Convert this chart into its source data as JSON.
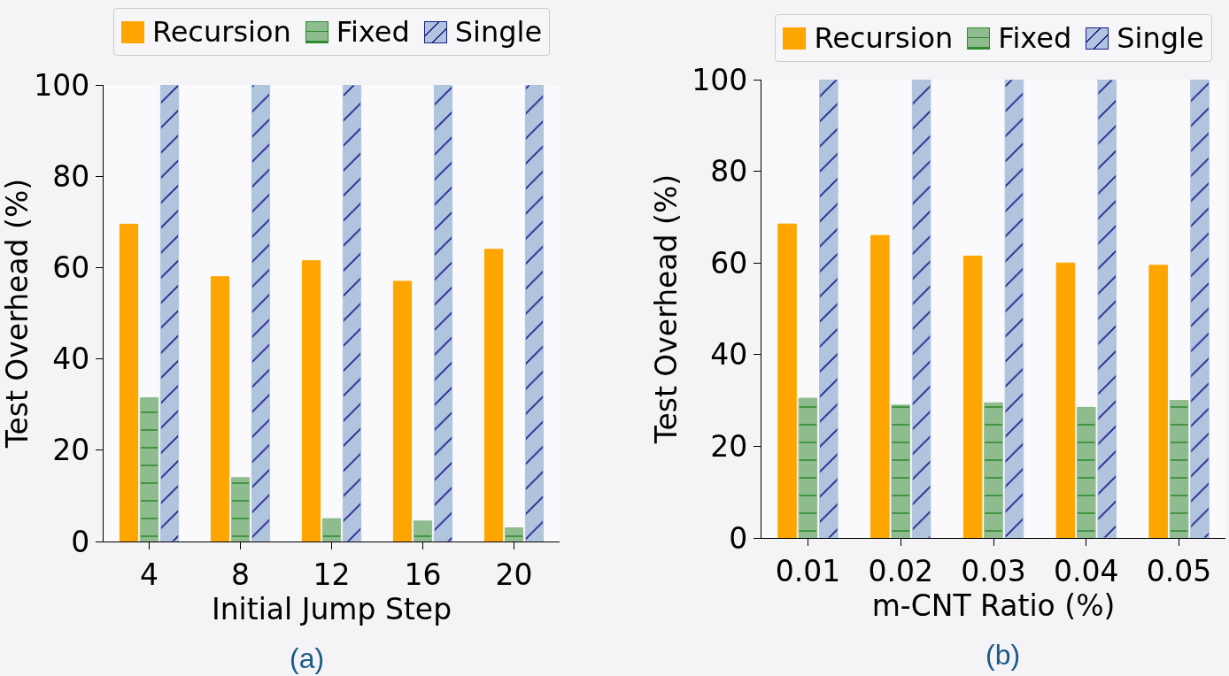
{
  "chart_data": [
    {
      "type": "bar",
      "categories": [
        "4",
        "8",
        "12",
        "16",
        "20"
      ],
      "xlabel": "Initial Jump Step",
      "ylabel": "Test Overhead (%)",
      "series": [
        {
          "name": "Recursion",
          "color": "#ffa500",
          "values": [
            69.5,
            58,
            61.5,
            57,
            64
          ]
        },
        {
          "name": "Fixed",
          "color": "#8fbc8f",
          "values": [
            31.5,
            14,
            5,
            4.5,
            3
          ]
        },
        {
          "name": "Single",
          "color": "#b0c4de",
          "values": [
            100,
            100,
            100,
            100,
            100
          ]
        }
      ],
      "ylim": [
        0,
        100
      ],
      "yticks": [
        0,
        20,
        40,
        60,
        80,
        100
      ],
      "grid": false,
      "legend": "top",
      "annotations": [
        "(a)"
      ]
    },
    {
      "type": "bar",
      "categories": [
        "0.01",
        "0.02",
        "0.03",
        "0.04",
        "0.05"
      ],
      "xlabel": "m-CNT Ratio (%)",
      "ylabel": "Test Overhead (%)",
      "series": [
        {
          "name": "Recursion",
          "color": "#ffa500",
          "values": [
            68.5,
            66,
            61.5,
            60,
            59.5
          ]
        },
        {
          "name": "Fixed",
          "color": "#8fbc8f",
          "values": [
            30.5,
            29,
            29.5,
            28.5,
            30
          ]
        },
        {
          "name": "Single",
          "color": "#b0c4de",
          "values": [
            100,
            100,
            100,
            100,
            100
          ]
        }
      ],
      "ylim": [
        0,
        100
      ],
      "yticks": [
        0,
        20,
        40,
        60,
        80,
        100
      ],
      "grid": false,
      "legend": "top",
      "annotations": [
        "(b)"
      ]
    }
  ]
}
